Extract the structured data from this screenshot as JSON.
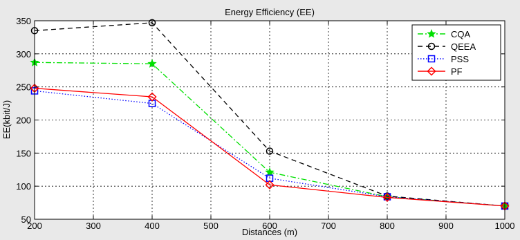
{
  "chart_data": {
    "type": "line",
    "title": "Energy Efficiency (EE)",
    "xlabel": "Distances (m)",
    "ylabel": "EE(kbit/J)",
    "xlim": [
      200,
      1000
    ],
    "ylim": [
      50,
      350
    ],
    "xticks": [
      200,
      300,
      400,
      500,
      600,
      700,
      800,
      900,
      1000
    ],
    "yticks": [
      50,
      100,
      150,
      200,
      250,
      300,
      350
    ],
    "grid": true,
    "legend_position": "top-right",
    "x": [
      200,
      400,
      600,
      800,
      1000
    ],
    "series": [
      {
        "name": "CQA",
        "values": [
          287,
          285,
          121,
          84,
          70
        ],
        "color": "#00e000",
        "dash": "dashdot",
        "marker": "star"
      },
      {
        "name": "QEEA",
        "values": [
          335,
          347,
          153,
          85,
          70
        ],
        "color": "#000000",
        "dash": "dashed",
        "marker": "circle"
      },
      {
        "name": "PSS",
        "values": [
          244,
          225,
          112,
          84,
          70
        ],
        "color": "#0000ff",
        "dash": "dotted",
        "marker": "square"
      },
      {
        "name": "PF",
        "values": [
          248,
          235,
          102,
          83,
          70
        ],
        "color": "#ff0000",
        "dash": "solid",
        "marker": "diamond"
      }
    ]
  }
}
